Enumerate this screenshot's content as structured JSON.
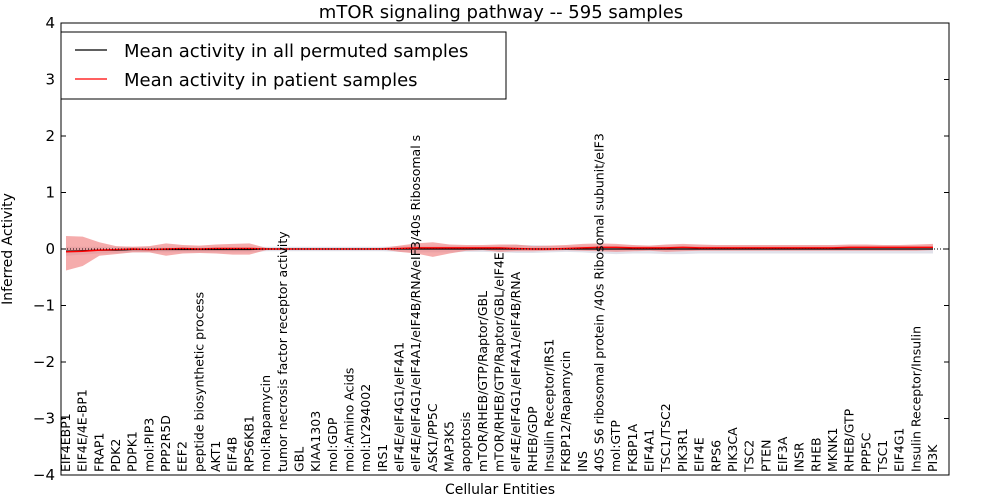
{
  "chart_data": {
    "type": "line",
    "title": "mTOR signaling pathway -- 595 samples",
    "xlabel": "Cellular Entities",
    "ylabel": "Inferred Activity",
    "ylim": [
      -4,
      4
    ],
    "yticks": [
      -4,
      -3,
      -2,
      -1,
      0,
      1,
      2,
      3,
      4
    ],
    "ytick_labels": [
      "−4",
      "−3",
      "−2",
      "−1",
      "0",
      "1",
      "2",
      "3",
      "4"
    ],
    "legend_position": "top-left",
    "categories": [
      "EIF4EBP1",
      "EIF4E/4E-BP1",
      "FRAP1",
      "PDK2",
      "PDPK1",
      "mol:PIP3",
      "PPP2R5D",
      "EEF2",
      "peptide biosynthetic process",
      "AKT1",
      "EIF4B",
      "RPS6KB1",
      "mol:Rapamycin",
      "tumor necrosis factor receptor activity",
      "GBL",
      "KIAA1303",
      "mol:GDP",
      "mol:Amino Acids",
      "mol:LY294002",
      "IRS1",
      "eIF4E/eIF4G1/eIF4A1",
      "eIF4E/eIF4G1/eIF4A1/eIF4B/RNA/eIF3/40s Ribosomal s",
      "ASK1/PP5C",
      "MAP3K5",
      "apoptosis",
      "mTOR/RHEB/GTP/Raptor/GBL",
      "mTOR/RHEB/GTP/Raptor/GBL/eIF4E",
      "eIF4E/eIF4G1/eIF4A1/eIF4B/RNA",
      "RHEB/GDP",
      "Insulin Receptor/IRS1",
      "FKBP12/Rapamycin",
      "INS",
      "40S S6 ribosomal protein /40s Ribosomal subunit/eIF3",
      "mol:GTP",
      "FKBP1A",
      "EIF4A1",
      "TSC1/TSC2",
      "PIK3R1",
      "EIF4E",
      "RPS6",
      "PIK3CA",
      "TSC2",
      "PTEN",
      "EIF3A",
      "INSR",
      "RHEB",
      "MKNK1",
      "RHEB/GTP",
      "PPP5C",
      "TSC1",
      "EIF4G1",
      "Insulin Receptor/Insulin",
      "PI3K"
    ],
    "series": [
      {
        "name": "Mean activity in all permuted samples",
        "color": "#000000",
        "values": [
          -0.04,
          -0.03,
          -0.02,
          -0.02,
          -0.01,
          -0.01,
          -0.01,
          -0.01,
          -0.01,
          -0.01,
          -0.01,
          -0.01,
          0,
          0,
          0,
          0,
          0,
          0,
          0,
          0,
          0,
          0,
          0,
          0,
          0,
          0,
          0,
          0,
          0,
          0,
          0,
          0,
          0,
          0,
          0,
          0,
          0,
          0,
          0,
          0,
          0,
          0,
          0,
          0,
          0,
          0,
          0,
          0,
          0,
          0,
          0,
          0,
          0
        ],
        "lower": [
          -0.12,
          -0.1,
          -0.08,
          -0.07,
          -0.06,
          -0.06,
          -0.06,
          -0.06,
          -0.06,
          -0.06,
          -0.06,
          -0.06,
          -0.04,
          -0.04,
          -0.04,
          -0.04,
          -0.04,
          -0.04,
          -0.04,
          -0.04,
          -0.05,
          -0.06,
          -0.06,
          -0.06,
          -0.05,
          -0.05,
          -0.06,
          -0.07,
          -0.07,
          -0.06,
          -0.05,
          -0.06,
          -0.08,
          -0.09,
          -0.08,
          -0.08,
          -0.09,
          -0.09,
          -0.08,
          -0.08,
          -0.08,
          -0.08,
          -0.08,
          -0.08,
          -0.08,
          -0.08,
          -0.08,
          -0.08,
          -0.08,
          -0.08,
          -0.08,
          -0.08,
          -0.08
        ],
        "upper": [
          0.04,
          0.04,
          0.04,
          0.04,
          0.04,
          0.04,
          0.04,
          0.04,
          0.04,
          0.04,
          0.04,
          0.04,
          0.04,
          0.04,
          0.04,
          0.04,
          0.04,
          0.04,
          0.04,
          0.04,
          0.05,
          0.06,
          0.06,
          0.06,
          0.05,
          0.05,
          0.06,
          0.07,
          0.07,
          0.06,
          0.05,
          0.06,
          0.06,
          0.06,
          0.06,
          0.06,
          0.06,
          0.06,
          0.06,
          0.06,
          0.06,
          0.06,
          0.06,
          0.06,
          0.06,
          0.06,
          0.06,
          0.06,
          0.06,
          0.06,
          0.06,
          0.06,
          0.06
        ]
      },
      {
        "name": "Mean activity in patient samples",
        "color": "#ff0000",
        "values": [
          -0.05,
          -0.04,
          -0.02,
          -0.01,
          0,
          -0.01,
          0,
          0.01,
          0,
          0.01,
          0.01,
          0.01,
          0,
          0,
          0,
          0,
          0,
          0,
          0,
          0,
          0.01,
          0.02,
          0.02,
          0.02,
          0.02,
          0.02,
          0.02,
          0.01,
          0,
          0,
          0.01,
          0.02,
          0.03,
          0.03,
          0.02,
          0.02,
          0.02,
          0.03,
          0.02,
          0.02,
          0.02,
          0.02,
          0.02,
          0.02,
          0.02,
          0.02,
          0.02,
          0.03,
          0.03,
          0.03,
          0.03,
          0.03,
          0.03
        ],
        "lower": [
          -0.38,
          -0.3,
          -0.12,
          -0.09,
          -0.06,
          -0.06,
          -0.12,
          -0.08,
          -0.07,
          -0.08,
          -0.1,
          -0.1,
          -0.02,
          -0.01,
          -0.01,
          -0.01,
          -0.01,
          -0.01,
          -0.01,
          -0.01,
          -0.05,
          -0.08,
          -0.14,
          -0.08,
          -0.03,
          -0.02,
          -0.05,
          -0.04,
          -0.04,
          -0.03,
          -0.02,
          -0.03,
          -0.04,
          -0.05,
          -0.04,
          -0.03,
          -0.05,
          -0.04,
          -0.03,
          -0.03,
          -0.03,
          -0.03,
          -0.03,
          -0.03,
          -0.03,
          -0.03,
          -0.03,
          -0.03,
          -0.03,
          -0.03,
          -0.03,
          -0.03,
          -0.02
        ],
        "upper": [
          0.23,
          0.22,
          0.12,
          0.05,
          0.04,
          0.05,
          0.1,
          0.07,
          0.06,
          0.08,
          0.09,
          0.1,
          0.02,
          0.01,
          0.01,
          0.01,
          0.01,
          0.01,
          0.01,
          0.02,
          0.06,
          0.1,
          0.12,
          0.08,
          0.07,
          0.07,
          0.08,
          0.08,
          0.05,
          0.06,
          0.07,
          0.09,
          0.1,
          0.09,
          0.07,
          0.06,
          0.08,
          0.09,
          0.08,
          0.07,
          0.07,
          0.07,
          0.07,
          0.07,
          0.07,
          0.07,
          0.07,
          0.08,
          0.08,
          0.07,
          0.07,
          0.08,
          0.09
        ]
      }
    ]
  }
}
